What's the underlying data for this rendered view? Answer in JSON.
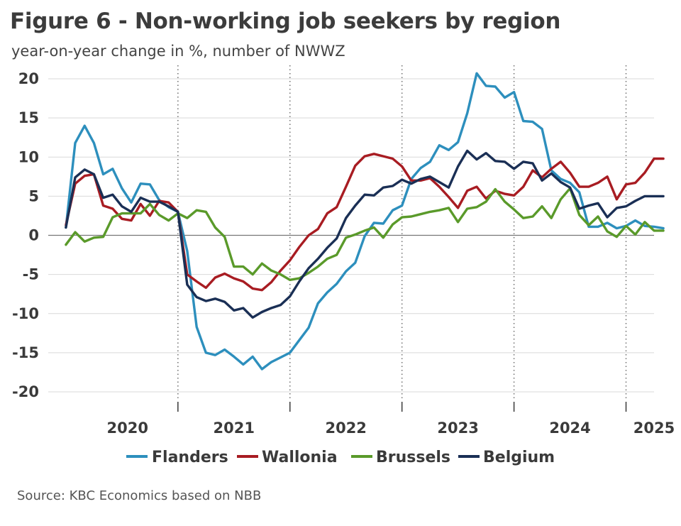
{
  "title": "Figure 6 - Non-working job seekers by region",
  "subtitle": "year-on-year change in %, number of NWWZ",
  "source": "Source: KBC Economics based on NBB",
  "chart_data": {
    "type": "line",
    "title": "Figure 6 - Non-working job seekers by region",
    "subtitle": "year-on-year change in %, number of NWWZ",
    "xlabel": "",
    "ylabel": "",
    "ylim": [
      -20,
      20
    ],
    "yticks": [
      20,
      15,
      10,
      5,
      0,
      -5,
      -10,
      -15,
      -20
    ],
    "ytick_labels": [
      "20",
      "15",
      "10",
      "5",
      "0",
      "-5",
      "-10",
      "-15",
      "-20"
    ],
    "xlim": [
      2019.7,
      2025.0
    ],
    "year_labels": [
      "2020",
      "2021",
      "2022",
      "2023",
      "2024",
      "2025"
    ],
    "year_boundaries": [
      2020.75,
      2021.75,
      2022.75,
      2023.75,
      2024.75
    ],
    "grid": "horizontal",
    "legend_position": "bottom",
    "series": [
      {
        "name": "Flanders",
        "color": "#2d8fbd",
        "x": [
          2019.75,
          2019.833,
          2019.917,
          2020.0,
          2020.083,
          2020.167,
          2020.25,
          2020.333,
          2020.417,
          2020.5,
          2020.583,
          2020.667,
          2020.75,
          2020.833,
          2020.917,
          2021.0,
          2021.083,
          2021.167,
          2021.25,
          2021.333,
          2021.417,
          2021.5,
          2021.583,
          2021.667,
          2021.75,
          2021.833,
          2021.917,
          2022.0,
          2022.083,
          2022.167,
          2022.25,
          2022.333,
          2022.417,
          2022.5,
          2022.583,
          2022.667,
          2022.75,
          2022.833,
          2022.917,
          2023.0,
          2023.083,
          2023.167,
          2023.25,
          2023.333,
          2023.417,
          2023.5,
          2023.583,
          2023.667,
          2023.75,
          2023.833,
          2023.917,
          2024.0,
          2024.083,
          2024.167,
          2024.25,
          2024.333,
          2024.417,
          2024.5,
          2024.583,
          2024.667,
          2024.75,
          2024.833,
          2024.917,
          2025.0,
          2025.083
        ],
        "values": [
          1.0,
          11.8,
          14.0,
          11.8,
          7.8,
          8.5,
          6.0,
          4.2,
          6.6,
          6.5,
          4.5,
          3.6,
          3.0,
          -2.0,
          -11.7,
          -15.0,
          -15.3,
          -14.6,
          -15.5,
          -16.5,
          -15.5,
          -17.1,
          -16.2,
          -15.6,
          -15.0,
          -13.4,
          -11.8,
          -8.7,
          -7.3,
          -6.2,
          -4.6,
          -3.5,
          -0.1,
          1.6,
          1.5,
          3.2,
          3.8,
          7.2,
          8.6,
          9.4,
          11.5,
          10.9,
          11.9,
          15.6,
          20.7,
          19.1,
          19.0,
          17.6,
          18.3,
          14.6,
          14.5,
          13.6,
          8.3,
          7.2,
          6.7,
          5.5,
          1.1,
          1.1,
          1.6,
          0.9,
          1.2,
          1.9,
          1.2,
          1.1,
          0.9
        ]
      },
      {
        "name": "Wallonia",
        "color": "#a81c22",
        "x": [
          2019.75,
          2019.833,
          2019.917,
          2020.0,
          2020.083,
          2020.167,
          2020.25,
          2020.333,
          2020.417,
          2020.5,
          2020.583,
          2020.667,
          2020.75,
          2020.833,
          2020.917,
          2021.0,
          2021.083,
          2021.167,
          2021.25,
          2021.333,
          2021.417,
          2021.5,
          2021.583,
          2021.667,
          2021.75,
          2021.833,
          2021.917,
          2022.0,
          2022.083,
          2022.167,
          2022.25,
          2022.333,
          2022.417,
          2022.5,
          2022.583,
          2022.667,
          2022.75,
          2022.833,
          2022.917,
          2023.0,
          2023.083,
          2023.167,
          2023.25,
          2023.333,
          2023.417,
          2023.5,
          2023.583,
          2023.667,
          2023.75,
          2023.833,
          2023.917,
          2024.0,
          2024.083,
          2024.167,
          2024.25,
          2024.333,
          2024.417,
          2024.5,
          2024.583,
          2024.667,
          2024.75,
          2024.833,
          2024.917,
          2025.0,
          2025.083
        ],
        "values": [
          1.3,
          6.6,
          7.6,
          7.8,
          3.8,
          3.4,
          2.1,
          1.9,
          4.0,
          2.5,
          4.4,
          4.2,
          3.0,
          -5.0,
          -5.9,
          -6.7,
          -5.4,
          -4.9,
          -5.5,
          -5.9,
          -6.8,
          -7.0,
          -6.0,
          -4.5,
          -3.2,
          -1.5,
          0.0,
          0.8,
          2.8,
          3.6,
          6.2,
          8.9,
          10.1,
          10.4,
          10.1,
          9.8,
          8.8,
          7.0,
          7.0,
          7.3,
          6.2,
          4.9,
          3.5,
          5.7,
          6.2,
          4.7,
          5.7,
          5.3,
          5.1,
          6.2,
          8.3,
          7.4,
          8.5,
          9.4,
          8.0,
          6.2,
          6.2,
          6.7,
          7.5,
          4.6,
          6.5,
          6.7,
          8.0,
          9.8,
          9.8
        ]
      },
      {
        "name": "Brussels",
        "color": "#5a9a2a",
        "x": [
          2019.75,
          2019.833,
          2019.917,
          2020.0,
          2020.083,
          2020.167,
          2020.25,
          2020.333,
          2020.417,
          2020.5,
          2020.583,
          2020.667,
          2020.75,
          2020.833,
          2020.917,
          2021.0,
          2021.083,
          2021.167,
          2021.25,
          2021.333,
          2021.417,
          2021.5,
          2021.583,
          2021.667,
          2021.75,
          2021.833,
          2021.917,
          2022.0,
          2022.083,
          2022.167,
          2022.25,
          2022.333,
          2022.417,
          2022.5,
          2022.583,
          2022.667,
          2022.75,
          2022.833,
          2022.917,
          2023.0,
          2023.083,
          2023.167,
          2023.25,
          2023.333,
          2023.417,
          2023.5,
          2023.583,
          2023.667,
          2023.75,
          2023.833,
          2023.917,
          2024.0,
          2024.083,
          2024.167,
          2024.25,
          2024.333,
          2024.417,
          2024.5,
          2024.583,
          2024.667,
          2024.75,
          2024.833,
          2024.917,
          2025.0,
          2025.083
        ],
        "values": [
          -1.2,
          0.4,
          -0.8,
          -0.3,
          -0.2,
          2.3,
          2.8,
          2.8,
          2.8,
          4.0,
          2.6,
          1.9,
          2.8,
          2.2,
          3.2,
          3.0,
          1.0,
          -0.2,
          -4.0,
          -4.0,
          -5.0,
          -3.6,
          -4.5,
          -5.0,
          -5.7,
          -5.5,
          -4.8,
          -4.0,
          -3.0,
          -2.5,
          -0.3,
          0.1,
          0.6,
          1.0,
          -0.3,
          1.4,
          2.3,
          2.4,
          2.7,
          3.0,
          3.2,
          3.5,
          1.7,
          3.4,
          3.6,
          4.3,
          5.9,
          4.3,
          3.3,
          2.2,
          2.4,
          3.7,
          2.2,
          4.6,
          6.0,
          2.6,
          1.3,
          2.4,
          0.5,
          -0.2,
          1.2,
          0.1,
          1.7,
          0.6,
          0.6
        ]
      },
      {
        "name": "Belgium",
        "color": "#1a2f55",
        "x": [
          2019.75,
          2019.833,
          2019.917,
          2020.0,
          2020.083,
          2020.167,
          2020.25,
          2020.333,
          2020.417,
          2020.5,
          2020.583,
          2020.667,
          2020.75,
          2020.833,
          2020.917,
          2021.0,
          2021.083,
          2021.167,
          2021.25,
          2021.333,
          2021.417,
          2021.5,
          2021.583,
          2021.667,
          2021.75,
          2021.833,
          2021.917,
          2022.0,
          2022.083,
          2022.167,
          2022.25,
          2022.333,
          2022.417,
          2022.5,
          2022.583,
          2022.667,
          2022.75,
          2022.833,
          2022.917,
          2023.0,
          2023.083,
          2023.167,
          2023.25,
          2023.333,
          2023.417,
          2023.5,
          2023.583,
          2023.667,
          2023.75,
          2023.833,
          2023.917,
          2024.0,
          2024.083,
          2024.167,
          2024.25,
          2024.333,
          2024.417,
          2024.5,
          2024.583,
          2024.667,
          2024.75,
          2024.833,
          2024.917,
          2025.0,
          2025.083
        ],
        "values": [
          1.0,
          7.4,
          8.4,
          7.8,
          4.8,
          5.2,
          3.7,
          3.0,
          4.8,
          4.3,
          4.3,
          3.7,
          3.0,
          -6.3,
          -7.9,
          -8.4,
          -8.1,
          -8.5,
          -9.6,
          -9.3,
          -10.5,
          -9.8,
          -9.3,
          -8.9,
          -7.8,
          -5.9,
          -4.2,
          -3.0,
          -1.6,
          -0.4,
          2.2,
          3.8,
          5.2,
          5.1,
          6.1,
          6.3,
          7.1,
          6.6,
          7.2,
          7.5,
          6.8,
          6.1,
          8.8,
          10.8,
          9.7,
          10.5,
          9.5,
          9.4,
          8.5,
          9.4,
          9.2,
          7.0,
          7.9,
          6.8,
          6.1,
          3.4,
          3.8,
          4.1,
          2.3,
          3.5,
          3.7,
          4.4,
          5.0,
          5.0,
          5.0
        ]
      }
    ]
  }
}
